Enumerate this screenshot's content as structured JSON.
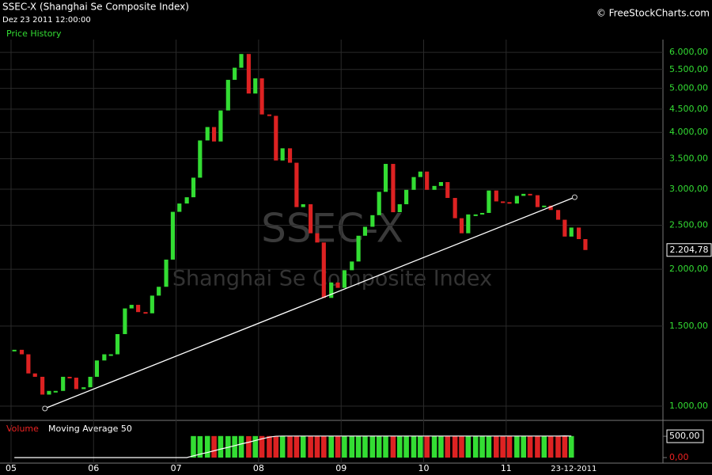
{
  "header": {
    "title": "SSEC-X (Shanghai Se Composite Index)",
    "datetime": "Dez 23 2011 12:00:00",
    "copyright": "© FreeStockCharts.com"
  },
  "chart_data": [
    {
      "type": "price-bars",
      "panel_title": "Price History",
      "watermark": "SSEC-X",
      "watermark_subtitle": "Shanghai Se Composite Index",
      "log_scale": true,
      "grid": true,
      "up_color": "#33dd33",
      "down_color": "#dd2222",
      "x": [
        2005.04,
        2005.13,
        2005.21,
        2005.29,
        2005.38,
        2005.46,
        2005.54,
        2005.63,
        2005.71,
        2005.79,
        2005.88,
        2005.96,
        2006.04,
        2006.13,
        2006.21,
        2006.29,
        2006.38,
        2006.46,
        2006.54,
        2006.63,
        2006.71,
        2006.79,
        2006.88,
        2006.96,
        2007.04,
        2007.13,
        2007.21,
        2007.29,
        2007.38,
        2007.46,
        2007.54,
        2007.63,
        2007.71,
        2007.79,
        2007.88,
        2007.96,
        2008.04,
        2008.13,
        2008.21,
        2008.29,
        2008.38,
        2008.46,
        2008.54,
        2008.63,
        2008.71,
        2008.79,
        2008.88,
        2008.96,
        2009.04,
        2009.13,
        2009.21,
        2009.29,
        2009.38,
        2009.46,
        2009.54,
        2009.63,
        2009.71,
        2009.79,
        2009.88,
        2009.96,
        2010.04,
        2010.13,
        2010.21,
        2010.29,
        2010.38,
        2010.46,
        2010.54,
        2010.63,
        2010.71,
        2010.79,
        2010.88,
        2010.96,
        2011.04,
        2011.13,
        2011.21,
        2011.29,
        2011.38,
        2011.46,
        2011.54,
        2011.63,
        2011.71,
        2011.79,
        2011.88,
        2011.96
      ],
      "values": [
        1330,
        1300,
        1180,
        1160,
        1060,
        1080,
        1080,
        1160,
        1155,
        1090,
        1100,
        1160,
        1260,
        1300,
        1300,
        1440,
        1640,
        1670,
        1610,
        1600,
        1750,
        1830,
        2100,
        2675,
        2790,
        2880,
        3180,
        3840,
        4110,
        3820,
        4470,
        5220,
        5550,
        5950,
        4870,
        5260,
        4380,
        4350,
        3470,
        3690,
        3430,
        2740,
        2780,
        2400,
        2290,
        1730,
        1870,
        1820,
        1990,
        2080,
        2370,
        2480,
        2630,
        2960,
        3410,
        2670,
        2780,
        2990,
        3190,
        3280,
        2990,
        3050,
        3110,
        2870,
        2590,
        2400,
        2640,
        2640,
        2660,
        2980,
        2820,
        2810,
        2790,
        2900,
        2930,
        2910,
        2740,
        2760,
        2700,
        2570,
        2360,
        2470,
        2330,
        2204.78
      ],
      "last_value": {
        "value": 2204.78,
        "label": "2.204,78"
      },
      "trendline": {
        "x": [
          2005.41,
          2011.83
        ],
        "y": [
          988,
          2880
        ]
      },
      "xlim": [
        2004.866,
        2012.9
      ],
      "ylim": [
        934,
        6530
      ],
      "xticks": [
        {
          "value": 2005,
          "label": "05"
        },
        {
          "value": 2006,
          "label": "06"
        },
        {
          "value": 2007,
          "label": "07"
        },
        {
          "value": 2008,
          "label": "08"
        },
        {
          "value": 2009,
          "label": "09"
        },
        {
          "value": 2010,
          "label": "10"
        },
        {
          "value": 2011,
          "label": "11"
        }
      ],
      "last_date": {
        "value": 2011.82,
        "label": "23-12-2011"
      },
      "yticks": [
        {
          "value": 1000,
          "label": "1.000,00"
        },
        {
          "value": 1500,
          "label": "1.500,00"
        },
        {
          "value": 2000,
          "label": "2.000,00"
        },
        {
          "value": 2500,
          "label": "2.500,00"
        },
        {
          "value": 3000,
          "label": "3.000,00"
        },
        {
          "value": 3500,
          "label": "3.500,00"
        },
        {
          "value": 4000,
          "label": "4.000,00"
        },
        {
          "value": 4500,
          "label": "4.500,00"
        },
        {
          "value": 5000,
          "label": "5.000,00"
        },
        {
          "value": 5500,
          "label": "5.500,00"
        },
        {
          "value": 6000,
          "label": "6.000,00"
        }
      ]
    },
    {
      "type": "volume",
      "panel_title": "Volume",
      "ma_title": "Moving Average 50",
      "values": [
        0,
        0,
        0,
        0,
        0,
        0,
        0,
        0,
        0,
        0,
        0,
        0,
        0,
        0,
        0,
        0,
        0,
        0,
        0,
        0,
        0,
        0,
        0,
        0,
        0,
        0,
        505,
        503,
        507,
        505,
        506,
        504,
        505,
        507,
        503,
        505,
        506,
        505,
        504,
        506,
        505,
        503,
        507,
        505,
        504,
        506,
        505,
        503,
        505,
        506,
        504,
        505,
        507,
        505,
        503,
        505,
        506,
        504,
        505,
        506,
        503,
        505,
        507,
        505,
        504,
        506,
        505,
        503,
        505,
        506,
        504,
        505,
        507,
        505,
        503,
        505,
        506,
        505,
        504,
        506,
        510,
        505
      ],
      "moving_average": [
        0,
        0,
        0,
        0,
        0,
        0,
        0,
        0,
        0,
        0,
        0,
        0,
        0,
        0,
        0,
        0,
        0,
        0,
        0,
        0,
        0,
        0,
        0,
        0,
        0,
        0,
        40,
        80,
        120,
        160,
        200,
        240,
        280,
        320,
        360,
        400,
        440,
        480,
        500,
        505,
        505,
        505,
        505,
        505,
        505,
        505,
        505,
        505,
        505,
        505,
        505,
        505,
        505,
        505,
        505,
        505,
        505,
        505,
        505,
        505,
        505,
        505,
        505,
        505,
        505,
        505,
        505,
        505,
        505,
        505,
        505,
        505,
        505,
        505,
        505,
        505,
        505,
        505,
        505,
        505,
        508,
        505
      ],
      "ylim": [
        0,
        520
      ],
      "yticks": [
        {
          "value": 500,
          "label": "500,00"
        },
        {
          "value": 0,
          "label": "0,00"
        }
      ]
    }
  ]
}
